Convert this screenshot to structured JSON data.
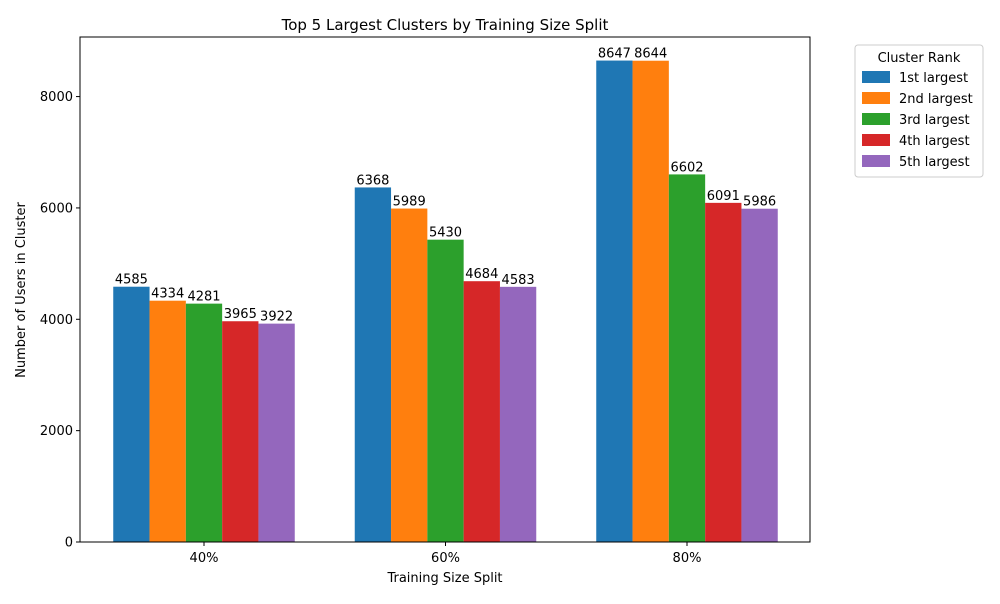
{
  "chart_data": {
    "type": "bar",
    "title": "Top 5 Largest Clusters by Training Size Split",
    "xlabel": "Training Size Split",
    "ylabel": "Number of Users in Cluster",
    "categories": [
      "40%",
      "60%",
      "80%"
    ],
    "ylim": [
      0,
      9070
    ],
    "yticks": [
      0,
      2000,
      4000,
      6000,
      8000
    ],
    "grid": false,
    "legend": {
      "title": "Cluster Rank",
      "placement": "outside-top-right"
    },
    "series": [
      {
        "name": "1st largest",
        "color": "#1f77b4",
        "values": [
          4585,
          6368,
          8647
        ]
      },
      {
        "name": "2nd largest",
        "color": "#ff7f0e",
        "values": [
          4334,
          5989,
          8644
        ]
      },
      {
        "name": "3rd largest",
        "color": "#2ca02c",
        "values": [
          4281,
          5430,
          6602
        ]
      },
      {
        "name": "4th largest",
        "color": "#d62728",
        "values": [
          3965,
          4684,
          6091
        ]
      },
      {
        "name": "5th largest",
        "color": "#9467bd",
        "values": [
          3922,
          4583,
          5986
        ]
      }
    ]
  }
}
